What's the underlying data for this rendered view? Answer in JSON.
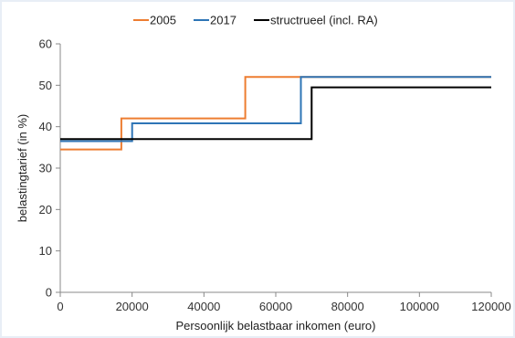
{
  "chart_data": {
    "type": "line",
    "step": true,
    "title": "",
    "xlabel": "Persoonlijk belastbaar inkomen (euro)",
    "ylabel": "belastingtarief (in %)",
    "xlim": [
      0,
      120000
    ],
    "ylim": [
      0,
      60
    ],
    "xticks": [
      0,
      20000,
      40000,
      60000,
      80000,
      100000,
      120000
    ],
    "yticks": [
      0,
      10,
      20,
      30,
      40,
      50,
      60
    ],
    "xtick_labels": [
      "0",
      "20000",
      "40000",
      "60000",
      "80000",
      "100000",
      "120000"
    ],
    "ytick_labels": [
      "0",
      "10",
      "20",
      "30",
      "40",
      "50",
      "60"
    ],
    "grid": false,
    "legend_position": "top",
    "series": [
      {
        "name": "2005",
        "color": "#ed7d31",
        "x": [
          0,
          17000,
          17000,
          51500,
          51500,
          120000
        ],
        "y": [
          34.5,
          34.5,
          42,
          42,
          52,
          52
        ]
      },
      {
        "name": "2017",
        "color": "#2e75b6",
        "x": [
          0,
          20000,
          20000,
          67000,
          67000,
          120000
        ],
        "y": [
          36.5,
          36.5,
          40.8,
          40.8,
          52,
          52
        ]
      },
      {
        "name": "structrueel (incl. RA)",
        "color": "#000000",
        "x": [
          0,
          70000,
          70000,
          120000
        ],
        "y": [
          37,
          37,
          49.5,
          49.5
        ]
      }
    ]
  }
}
